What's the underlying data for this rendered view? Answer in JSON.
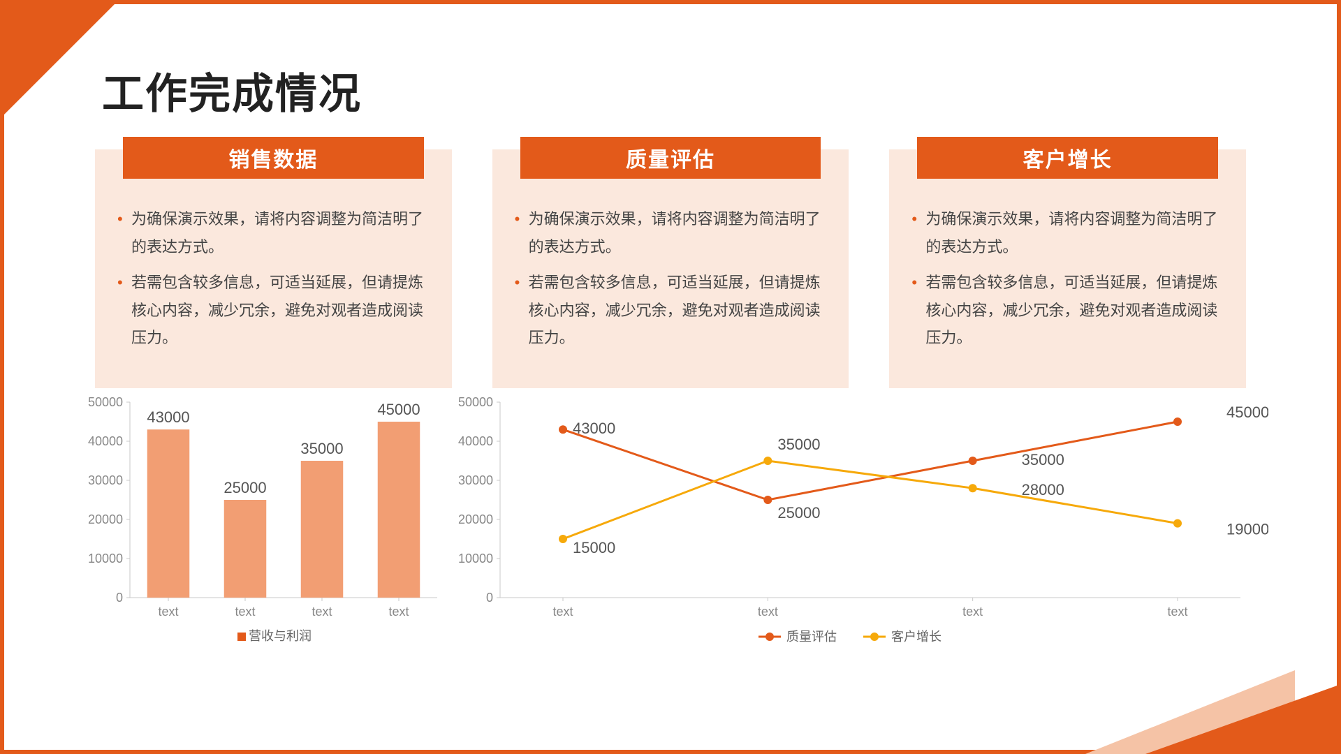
{
  "title": "工作完成情况",
  "accent_color": "#e35a1a",
  "card_bg": "#fbe8dd",
  "cards": [
    {
      "header": "销售数据",
      "bullets": [
        "为确保演示效果，请将内容调整为简洁明了的表达方式。",
        "若需包含较多信息，可适当延展，但请提炼核心内容，减少冗余，避免对观者造成阅读压力。"
      ]
    },
    {
      "header": "质量评估",
      "bullets": [
        "为确保演示效果，请将内容调整为简洁明了的表达方式。",
        "若需包含较多信息，可适当延展，但请提炼核心内容，减少冗余，避免对观者造成阅读压力。"
      ]
    },
    {
      "header": "客户增长",
      "bullets": [
        "为确保演示效果，请将内容调整为简洁明了的表达方式。",
        "若需包含较多信息，可适当延展，但请提炼核心内容，减少冗余，避免对观者造成阅读压力。"
      ]
    }
  ],
  "bar_chart": {
    "type": "bar",
    "categories": [
      "text",
      "text",
      "text",
      "text"
    ],
    "values": [
      43000,
      25000,
      35000,
      45000
    ],
    "bar_color": "#f29e73",
    "ylim": [
      0,
      50000
    ],
    "ytick_step": 10000,
    "axis_color": "#c8c8c8",
    "tick_label_color": "#888888",
    "value_label_color": "#555555",
    "value_label_fontsize": 22,
    "legend": "营收与利润",
    "legend_color": "#e35a1a"
  },
  "line_chart": {
    "type": "line",
    "categories": [
      "text",
      "text",
      "text",
      "text"
    ],
    "series": [
      {
        "name": "质量评估",
        "color": "#e35a1a",
        "values": [
          43000,
          25000,
          35000,
          45000
        ],
        "label_color": "#888888"
      },
      {
        "name": "客户增长",
        "color": "#f6a90a",
        "values": [
          15000,
          35000,
          28000,
          19000
        ],
        "label_color": "#888888"
      }
    ],
    "ylim": [
      0,
      50000
    ],
    "ytick_step": 10000,
    "axis_color": "#c8c8c8",
    "line_width": 3,
    "marker_radius": 6
  }
}
